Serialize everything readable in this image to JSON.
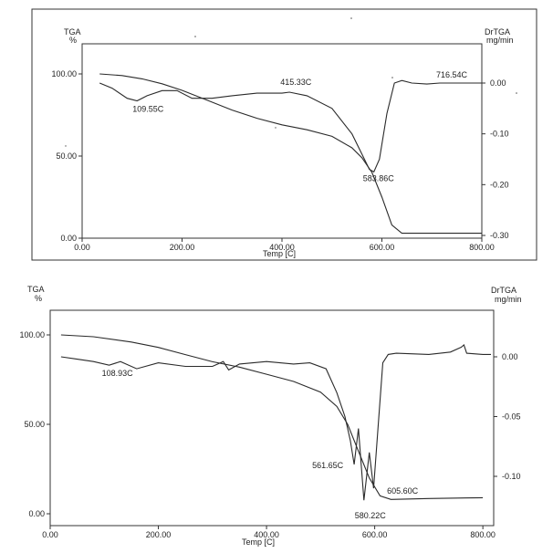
{
  "chart_data": [
    {
      "type": "line",
      "left_axis_label": "TGA",
      "left_axis_unit": "%",
      "right_axis_label": "DrTGA",
      "right_axis_unit": "mg/min",
      "xlabel": "Temp  [C]",
      "xlim": [
        0,
        800
      ],
      "ylim_left": [
        0,
        110
      ],
      "ylim_right": [
        -0.3,
        0.05
      ],
      "x_ticks": [
        0,
        200,
        400,
        600,
        800
      ],
      "x_tick_labels": [
        "0.00",
        "200.00",
        "400.00",
        "600.00",
        "800.00"
      ],
      "left_ticks": [
        0,
        50,
        100
      ],
      "left_tick_labels": [
        "0.00",
        "50.00",
        "100.00"
      ],
      "right_ticks": [
        0,
        -0.1,
        -0.2,
        -0.3
      ],
      "right_tick_labels": [
        "0.00",
        "-0.10",
        "-0.20",
        "-0.30"
      ],
      "series": [
        {
          "axis": "left",
          "x": [
            35,
            80,
            120,
            160,
            200,
            250,
            300,
            350,
            400,
            450,
            500,
            540,
            560,
            580,
            600,
            620,
            640,
            700,
            760,
            800
          ],
          "y": [
            100,
            99,
            97,
            94,
            90,
            84,
            78,
            73,
            69,
            66,
            62,
            55,
            49,
            40,
            25,
            8,
            3,
            3,
            3,
            3
          ]
        },
        {
          "axis": "right",
          "x": [
            35,
            60,
            90,
            110,
            130,
            160,
            190,
            220,
            260,
            300,
            350,
            400,
            415,
            450,
            500,
            540,
            560,
            575,
            584,
            595,
            610,
            625,
            640,
            660,
            690,
            716,
            750,
            800
          ],
          "y": [
            0.0,
            -0.01,
            -0.03,
            -0.035,
            -0.025,
            -0.015,
            -0.015,
            -0.03,
            -0.03,
            -0.025,
            -0.02,
            -0.02,
            -0.018,
            -0.025,
            -0.05,
            -0.1,
            -0.14,
            -0.17,
            -0.175,
            -0.15,
            -0.06,
            0.0,
            0.005,
            0.0,
            -0.002,
            0.0,
            0.0,
            0.0
          ]
        }
      ],
      "annotations": [
        {
          "text": "109.55C",
          "x": 110,
          "y": -0.035,
          "axis": "right"
        },
        {
          "text": "415.33C",
          "x": 415,
          "y": -0.018,
          "axis": "right"
        },
        {
          "text": "583.86C",
          "x": 584,
          "y": -0.175,
          "axis": "right"
        },
        {
          "text": "716.54C",
          "x": 716,
          "y": 0.0,
          "axis": "right"
        }
      ]
    },
    {
      "type": "line",
      "left_axis_label": "TGA",
      "left_axis_unit": "%",
      "right_axis_label": "DrTGA",
      "right_axis_unit": "mg/min",
      "xlabel": "Temp  [C]",
      "xlim": [
        0,
        820
      ],
      "ylim_left": [
        0,
        110
      ],
      "ylim_right": [
        -0.14,
        0.04
      ],
      "x_ticks": [
        0,
        200,
        400,
        600,
        800
      ],
      "x_tick_labels": [
        "0.00",
        "200.00",
        "400.00",
        "600.00",
        "800.00"
      ],
      "left_ticks": [
        0,
        50,
        100
      ],
      "left_tick_labels": [
        "0.00",
        "50.00",
        "100.00"
      ],
      "right_ticks": [
        0,
        -0.05,
        -0.1
      ],
      "right_tick_labels": [
        "0.00",
        "-0.05",
        "-0.10"
      ],
      "series": [
        {
          "axis": "left",
          "x": [
            20,
            80,
            150,
            200,
            250,
            300,
            350,
            400,
            450,
            500,
            530,
            550,
            570,
            590,
            610,
            630,
            700,
            800
          ],
          "y": [
            100,
            99,
            96,
            93,
            89,
            85,
            82,
            78,
            74,
            68,
            60,
            50,
            35,
            20,
            10,
            8,
            8.5,
            9
          ]
        },
        {
          "axis": "right",
          "x": [
            20,
            50,
            80,
            109,
            130,
            160,
            200,
            250,
            300,
            320,
            330,
            350,
            400,
            450,
            480,
            510,
            530,
            545,
            555,
            562,
            570,
            580,
            590,
            598,
            606,
            615,
            625,
            640,
            700,
            740,
            760,
            765,
            770,
            800,
            815
          ],
          "y": [
            0.0,
            -0.002,
            -0.004,
            -0.007,
            -0.004,
            -0.01,
            -0.005,
            -0.008,
            -0.008,
            -0.004,
            -0.011,
            -0.006,
            -0.004,
            -0.006,
            -0.005,
            -0.01,
            -0.03,
            -0.05,
            -0.07,
            -0.09,
            -0.06,
            -0.12,
            -0.08,
            -0.11,
            -0.06,
            -0.005,
            0.002,
            0.003,
            0.002,
            0.004,
            0.008,
            0.01,
            0.003,
            0.002,
            0.002
          ]
        }
      ],
      "annotations": [
        {
          "text": "108.93C",
          "x": 109,
          "y": -0.007,
          "axis": "right"
        },
        {
          "text": "561.65C",
          "x": 562,
          "y": -0.09,
          "axis": "right"
        },
        {
          "text": "580.22C",
          "x": 580,
          "y": -0.12,
          "axis": "right"
        },
        {
          "text": "605.60C",
          "x": 606,
          "y": -0.11,
          "axis": "right"
        }
      ]
    }
  ]
}
